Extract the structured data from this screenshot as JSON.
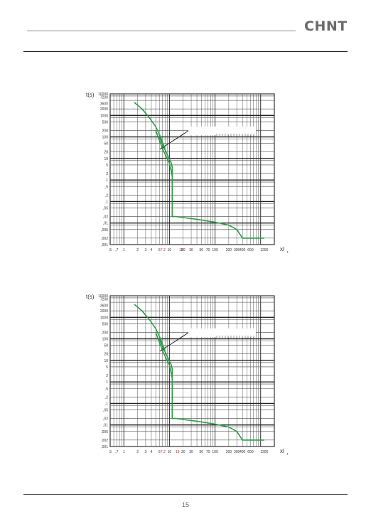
{
  "header": {
    "brand": "CHNT"
  },
  "page": {
    "number": "15"
  },
  "chart_data": [
    {
      "type": "line",
      "ylabel": "t(s)",
      "xlabel": "xI",
      "xlabel_sub": "r",
      "y_ticks": [
        "10000",
        "7200",
        "3600",
        "2000",
        "1000",
        "500",
        "200",
        "100",
        "50",
        "20",
        "10",
        "5",
        "2",
        "1",
        ",5",
        ",2",
        ",1",
        ",05",
        ",02",
        ",01",
        ",005",
        ",002",
        ",001"
      ],
      "x_ticks": [
        ",5",
        ",7",
        "1",
        "2",
        "3",
        "4",
        "6",
        "7.2",
        "10",
        "18",
        "20",
        "30",
        "50",
        "70",
        "100",
        "200",
        "300",
        "400",
        "600",
        "1200"
      ],
      "x_ticks_red": [
        "7.2",
        "18"
      ],
      "xlim": [
        0.5,
        2000
      ],
      "ylim": [
        0.001,
        10000
      ],
      "series": [
        {
          "x": [
            1.7,
            2.5,
            3.6,
            5,
            5.8,
            6.4,
            7,
            7.5,
            8
          ],
          "y": [
            4000,
            2000,
            800,
            300,
            150,
            100,
            55,
            40,
            28
          ]
        },
        {
          "x": [
            5,
            7.2,
            10,
            11.5
          ],
          "y": [
            200,
            25,
            6,
            1.5
          ]
        },
        {
          "x": [
            6,
            7.2,
            11,
            11.5,
            11.5,
            14,
            20,
            40,
            100,
            200,
            300,
            400,
            600,
            1200
          ],
          "y": [
            100,
            40,
            6,
            4,
            0.02,
            0.02,
            0.018,
            0.015,
            0.011,
            0.008,
            0.005,
            0.002,
            0.002,
            0.002
          ]
        }
      ]
    },
    {
      "type": "line",
      "ylabel": "t(s)",
      "xlabel": "xI",
      "xlabel_sub": "r",
      "y_ticks": [
        "10000",
        "7200",
        "3600",
        "2000",
        "1000",
        "500",
        "200",
        "100",
        "50",
        "20",
        "10",
        "5",
        "2",
        "1",
        ",5",
        ",2",
        ",1",
        ",05",
        ",02",
        ",01",
        ",005",
        ",002",
        ",001"
      ],
      "x_ticks": [
        ",5",
        ",7",
        "1",
        "2",
        "3",
        "4",
        "6",
        "7.2",
        "10",
        "15",
        "20",
        "30",
        "50",
        "70",
        "100",
        "200",
        "300",
        "400",
        "600",
        "1200"
      ],
      "x_ticks_red": [
        "7.2",
        "15"
      ],
      "xlim": [
        0.5,
        2000
      ],
      "ylim": [
        0.001,
        10000
      ],
      "series": [
        {
          "x": [
            1.7,
            2.5,
            3.6,
            5,
            5.8,
            6.4,
            7,
            7.5,
            8
          ],
          "y": [
            4000,
            2000,
            800,
            300,
            150,
            100,
            55,
            40,
            28
          ]
        },
        {
          "x": [
            5,
            7.2,
            10,
            11.5
          ],
          "y": [
            200,
            25,
            6,
            1.5
          ]
        },
        {
          "x": [
            6,
            7.2,
            11,
            11.5,
            11.5,
            14,
            20,
            40,
            100,
            200,
            300,
            400,
            600,
            1200
          ],
          "y": [
            100,
            40,
            6,
            4,
            0.02,
            0.02,
            0.018,
            0.015,
            0.011,
            0.008,
            0.005,
            0.002,
            0.002,
            0.002
          ]
        }
      ]
    }
  ]
}
